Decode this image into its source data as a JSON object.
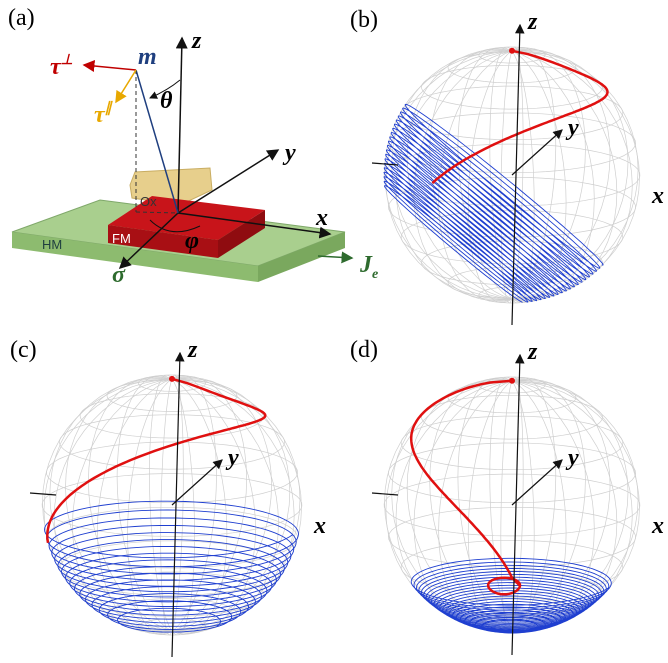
{
  "panel_a": {
    "label": "(a)",
    "z": "z",
    "y": "y",
    "x": "x",
    "m": "m",
    "tau_perp": {
      "symbol": "τ",
      "superscript": "⊥"
    },
    "tau_par": {
      "symbol": "τ",
      "superscript": "∥"
    },
    "theta": "θ",
    "phi": "φ",
    "ox": "Ox",
    "fm": "FM",
    "hm": "HM",
    "current": {
      "symbol": "J",
      "subscript": "e"
    },
    "sigma": "σ"
  },
  "panel_b": {
    "label": "(b)",
    "z": "z",
    "y": "y",
    "x": "x"
  },
  "panel_c": {
    "label": "(c)",
    "z": "z",
    "y": "y",
    "x": "x"
  },
  "panel_d": {
    "label": "(d)",
    "z": "z",
    "y": "y",
    "x": "x"
  }
}
